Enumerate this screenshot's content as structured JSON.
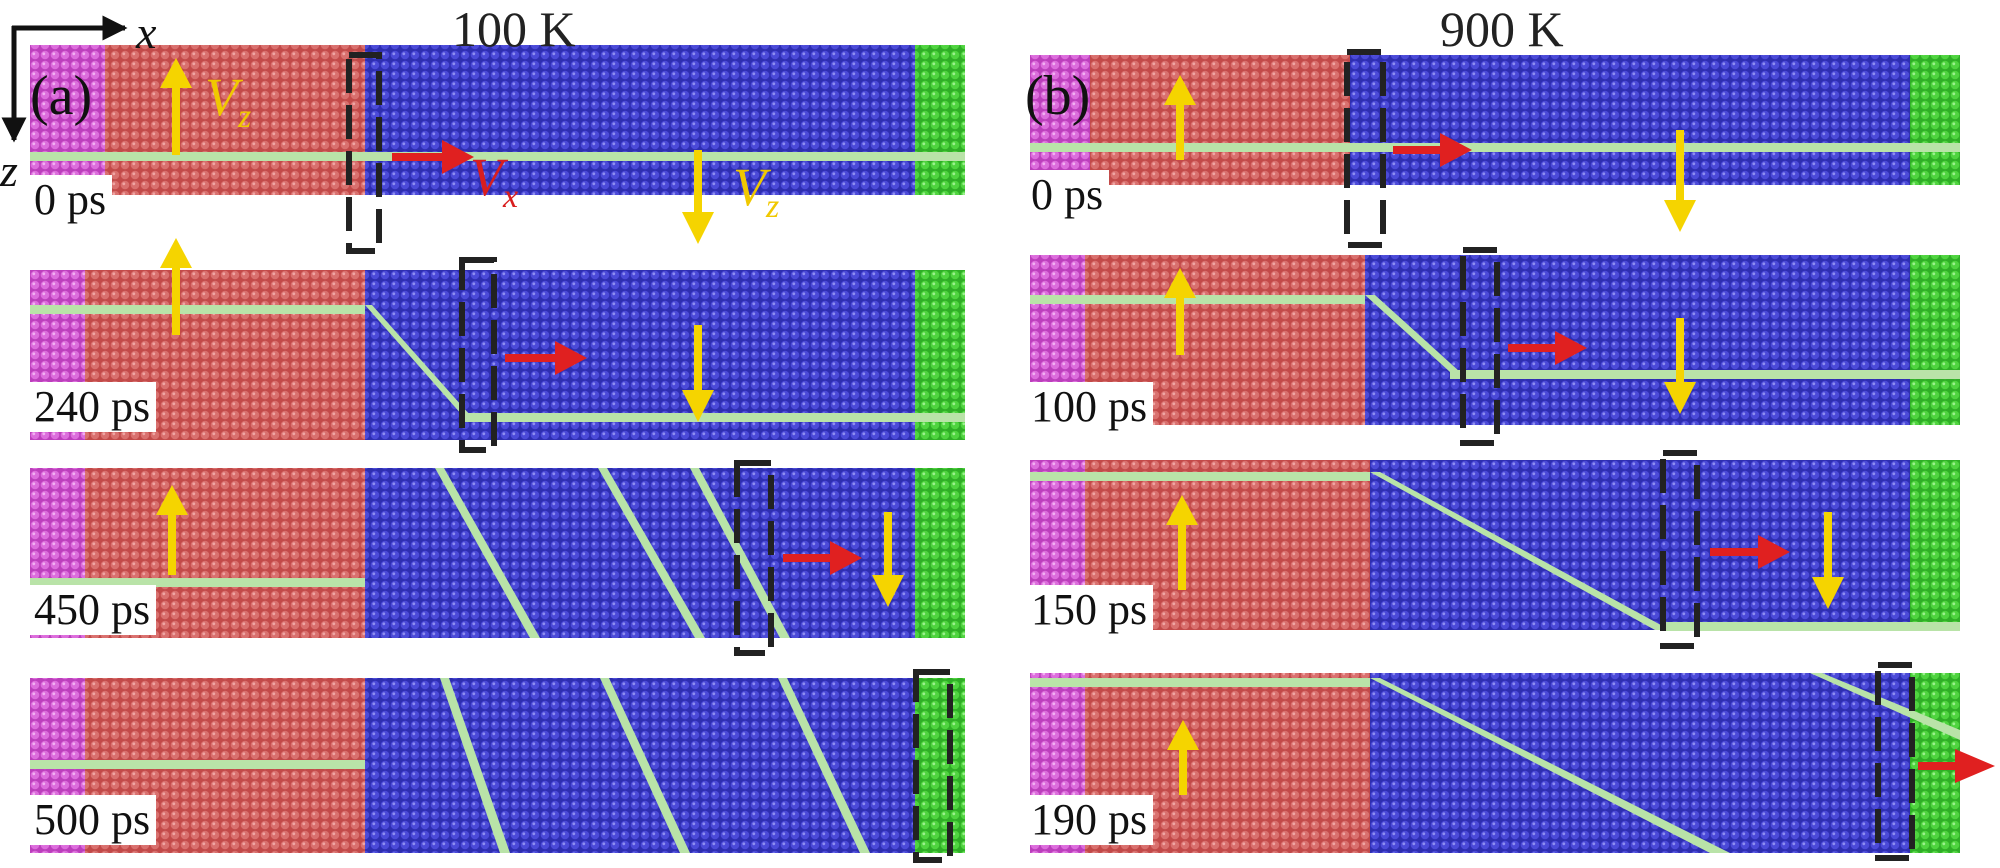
{
  "figure": {
    "panel_a": {
      "letter": "(a)",
      "temperature": "100 K",
      "times": [
        "0 ps",
        "240 ps",
        "450 ps",
        "500 ps"
      ]
    },
    "panel_b": {
      "letter": "(b)",
      "temperature": "900 K",
      "times": [
        "0 ps",
        "100 ps",
        "150 ps",
        "190 ps"
      ]
    },
    "axes": {
      "x": "x",
      "z": "z"
    },
    "velocity_labels": {
      "vz": "V",
      "vz_sub": "z",
      "vx": "V",
      "vx_sub": "x"
    }
  },
  "colors": {
    "red_grain": "#c9504f",
    "blue_grain": "#3c3bc8",
    "green_edge": "#3fc832",
    "magenta_edge": "#d455d4",
    "boundary_atoms": "#b9e3a8",
    "yellow_arrow": "#f5d400",
    "red_arrow": "#e02020",
    "dash_box": "#222222"
  }
}
